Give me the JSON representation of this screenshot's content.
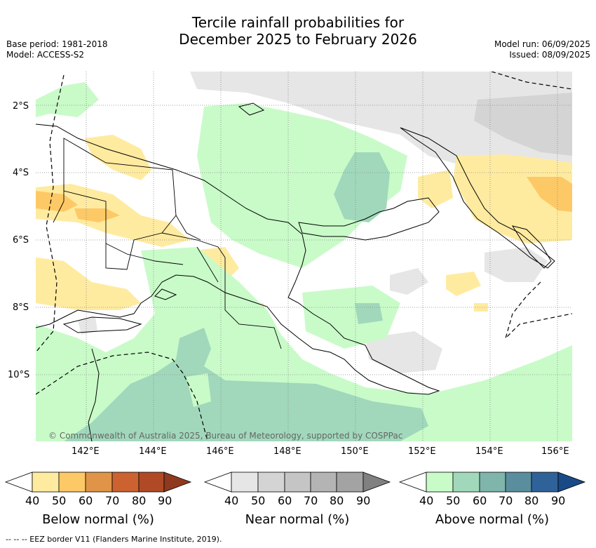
{
  "header": {
    "title_line1": "Tercile rainfall probabilities for",
    "title_line2": "December 2025 to February 2026",
    "base_period": "Base period: 1981-2018",
    "model": "Model: ACCESS-S2",
    "model_run": "Model run: 06/09/2025",
    "issued": "Issued: 08/09/2025"
  },
  "map": {
    "lat_labels": [
      "2°S",
      "4°S",
      "6°S",
      "8°S",
      "10°S"
    ],
    "lon_labels": [
      "142°E",
      "144°E",
      "146°E",
      "148°E",
      "150°E",
      "152°E",
      "154°E",
      "156°E"
    ],
    "credit": "© Commonwealth of Australia 2025, Bureau of Meteorology, supported by COSPPac"
  },
  "legends": [
    {
      "title": "Below normal (%)",
      "ticks": [
        "40",
        "50",
        "60",
        "70",
        "80",
        "90"
      ],
      "colors": [
        "#ffffff",
        "#ffeba0",
        "#fdc966",
        "#e09447",
        "#cc6230",
        "#b04a26",
        "#8f3a1e"
      ]
    },
    {
      "title": "Near normal (%)",
      "ticks": [
        "40",
        "50",
        "60",
        "70",
        "80",
        "90"
      ],
      "colors": [
        "#ffffff",
        "#e6e6e6",
        "#d4d4d4",
        "#c5c5c5",
        "#b4b4b4",
        "#a3a3a3",
        "#808080"
      ]
    },
    {
      "title": "Above normal (%)",
      "ticks": [
        "40",
        "50",
        "60",
        "70",
        "80",
        "90"
      ],
      "colors": [
        "#ffffff",
        "#c9fbc9",
        "#a1d8bb",
        "#7fb5ab",
        "#5a8e9e",
        "#30629a",
        "#1a4a86"
      ]
    }
  ],
  "footnote": "--  --  -- EEZ border V11 (Flanders Marine Institute, 2019)."
}
